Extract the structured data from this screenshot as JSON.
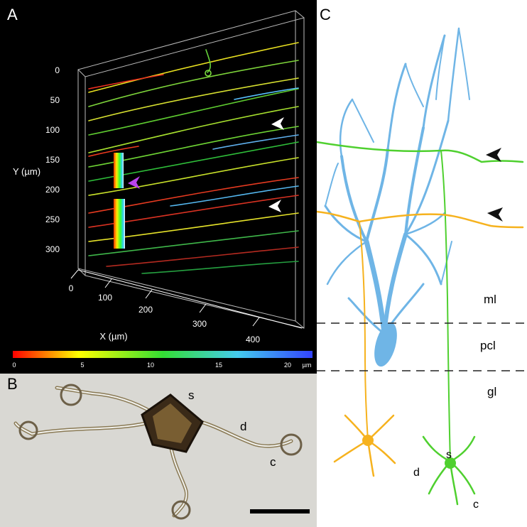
{
  "panel_a": {
    "label": "A",
    "y_axis_label": "Y (µm)",
    "x_axis_label": "X (µm)",
    "y_ticks": [
      "0",
      "50",
      "100",
      "150",
      "200",
      "250",
      "300"
    ],
    "x_ticks": [
      "0",
      "100",
      "200",
      "300",
      "400"
    ],
    "colorbar_ticks": [
      "0",
      "5",
      "10",
      "15",
      "20"
    ],
    "colorbar_unit": "µm",
    "colorbar_colors": [
      "#ff0000",
      "#ffff00",
      "#33dd33",
      "#44ccee",
      "#3344ff"
    ],
    "arrow_colors": {
      "white": "#ffffff",
      "magenta": "#bb44ee"
    }
  },
  "panel_b": {
    "label": "B",
    "annotations": {
      "soma": "s",
      "dendrite": "d",
      "claw": "c"
    }
  },
  "panel_c": {
    "label": "C",
    "layers": {
      "molecular": "ml",
      "purkinje": "pcl",
      "granular": "gl"
    },
    "annotations": {
      "soma": "s",
      "dendrite": "d",
      "claw": "c"
    },
    "colors": {
      "purkinje": "#6fb5e6",
      "granule_green": "#4fd02f",
      "granule_orange": "#f6b21e"
    }
  }
}
